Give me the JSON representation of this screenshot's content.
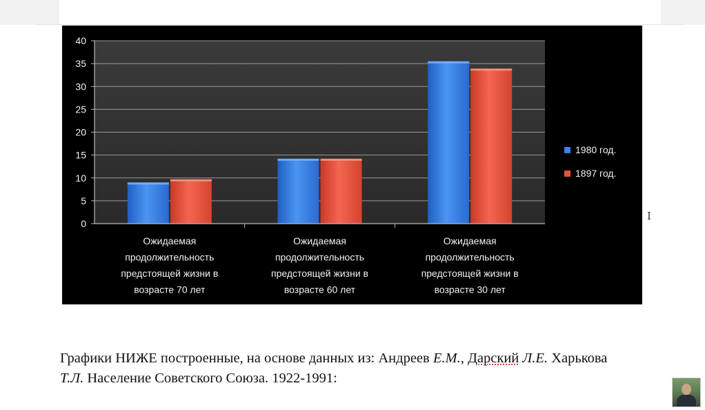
{
  "chart_data": {
    "type": "bar",
    "categories": [
      [
        "Ожидаемая",
        "продолжительность",
        "предстоящей жизни в",
        "возрасте 70 лет"
      ],
      [
        "Ожидаемая",
        "продолжительность",
        "предстоящей жизни в",
        "возрасте 60 лет"
      ],
      [
        "Ожидаемая",
        "продолжительность",
        "предстоящей жизни в",
        "возрасте  30 лет"
      ]
    ],
    "series": [
      {
        "name": "1980 год.",
        "values": [
          9,
          14.2,
          35.5
        ],
        "color": "#3b82e6"
      },
      {
        "name": "1897 год.",
        "values": [
          9.7,
          14.2,
          33.9
        ],
        "color": "#e8503c"
      }
    ],
    "ylim": [
      0,
      40
    ],
    "yticks": [
      "0",
      "5",
      "10",
      "15",
      "20",
      "25",
      "30",
      "35",
      "40"
    ],
    "grid": true,
    "legend_position": "right",
    "title": "",
    "xlabel": "",
    "ylabel": ""
  },
  "citation": {
    "part1": "Графики НИЖЕ построенные, на основе данных из: Андреев ",
    "author1": "Е.М.",
    "sep1": ", ",
    "author2_name": "Дарский",
    "author2_init": " Л.Е.",
    "part2": " Харькова",
    "author3_init": "Т.Л.",
    "part3": " Население Советского Союза. 1922-1991:"
  },
  "cursor_glyph": "I"
}
